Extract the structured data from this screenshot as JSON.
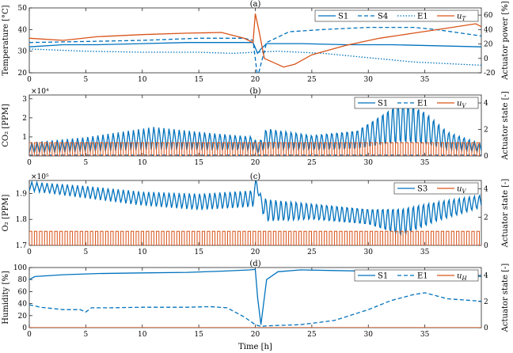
{
  "chart_data": [
    {
      "type": "line",
      "label": "(a)",
      "ylabel": "Temperature [°C]",
      "y2label": "Actuator power [%]",
      "xlim": [
        0,
        40
      ],
      "ylim": [
        20,
        50
      ],
      "y2lim": [
        -20,
        70
      ],
      "xticks": [
        0,
        5,
        10,
        15,
        20,
        25,
        30,
        35
      ],
      "yticks": [
        20,
        30,
        40,
        50
      ],
      "y2ticks": [
        -20,
        0,
        20,
        40,
        60
      ],
      "multiplier": "",
      "legend": [
        "S1",
        "S4",
        "E1",
        "u_T"
      ],
      "series": [
        {
          "name": "S1",
          "style": "solid",
          "axis": "left",
          "color": "#0072BD",
          "x": [
            0,
            3,
            6,
            10,
            14,
            18,
            19.8,
            20.2,
            20.5,
            21,
            24,
            28,
            32,
            36,
            40
          ],
          "y": [
            32,
            33,
            33,
            33.5,
            34,
            34,
            34,
            29,
            31,
            33.5,
            33.5,
            33,
            33,
            32.5,
            32
          ]
        },
        {
          "name": "S4",
          "style": "dashed",
          "axis": "left",
          "color": "#0072BD",
          "x": [
            0,
            5,
            10,
            15,
            19,
            19.8,
            20.2,
            20.5,
            21,
            23,
            26,
            30,
            34,
            36,
            40
          ],
          "y": [
            34,
            34.5,
            35,
            36,
            36,
            35,
            18,
            24,
            34,
            39,
            40,
            41,
            41,
            40,
            37
          ]
        },
        {
          "name": "E1",
          "style": "dotted",
          "axis": "left",
          "color": "#0072BD",
          "x": [
            0,
            5,
            10,
            15,
            18,
            20,
            22,
            26,
            30,
            34,
            38,
            40
          ],
          "y": [
            31,
            30,
            29.5,
            29.5,
            29,
            29.5,
            30,
            29,
            27,
            25,
            24,
            23.5
          ]
        },
        {
          "name": "u_T",
          "style": "solid",
          "axis": "right",
          "color": "#D95319",
          "x": [
            0,
            3,
            6,
            10,
            14,
            17,
            19,
            19.8,
            20,
            20.3,
            20.8,
            21.5,
            22.5,
            23.5,
            25,
            28,
            31,
            34,
            37,
            39.5,
            40
          ],
          "y": [
            28,
            25,
            30,
            33,
            35,
            36,
            28,
            22,
            62,
            40,
            0,
            -5,
            -12,
            -8,
            5,
            18,
            28,
            35,
            42,
            48,
            44
          ]
        }
      ]
    },
    {
      "type": "line",
      "label": "(b)",
      "ylabel": "CO₂ [PPM]",
      "y2label": "Actuator state [-]",
      "xlim": [
        0,
        40
      ],
      "ylim": [
        0,
        3.2
      ],
      "y2lim": [
        0,
        4.6
      ],
      "xticks": [
        0,
        5,
        10,
        15,
        20,
        25,
        30,
        35
      ],
      "yticks": [
        1,
        2,
        3
      ],
      "y2ticks": [
        0,
        2,
        4
      ],
      "multiplier": "×10⁴",
      "legend": [
        "S1",
        "E1",
        "u_V"
      ],
      "series": [
        {
          "name": "S1",
          "style": "solid",
          "axis": "left",
          "color": "#0072BD",
          "env_x": [
            0,
            5,
            11,
            16,
            19.9,
            20.2,
            21,
            25,
            29,
            32,
            33,
            35,
            37,
            40
          ],
          "env_top": [
            0.7,
            1.0,
            1.6,
            1.3,
            1.1,
            0.6,
            1.6,
            1.2,
            1.5,
            2.8,
            3.3,
            2.6,
            1.4,
            0.7
          ],
          "env_bottom": [
            0.15,
            0.2,
            0.25,
            0.2,
            0.2,
            0.1,
            0.2,
            0.2,
            0.2,
            0.3,
            0.3,
            0.3,
            0.2,
            0.15
          ],
          "period": 0.45
        },
        {
          "name": "E1",
          "style": "dashed",
          "axis": "left",
          "color": "#0072BD",
          "x": [
            0,
            40
          ],
          "y": [
            0.04,
            0.04
          ]
        },
        {
          "name": "u_V",
          "style": "square",
          "axis": "right",
          "color": "#D95319",
          "low": 0,
          "high": 1,
          "period": 0.45
        }
      ]
    },
    {
      "type": "line",
      "label": "(c)",
      "ylabel": "O₂ [PPM]",
      "y2label": "Actuator state [-]",
      "xlim": [
        0,
        40
      ],
      "ylim": [
        1.7,
        1.95
      ],
      "y2lim": [
        0,
        4.6
      ],
      "xticks": [
        0,
        5,
        10,
        15,
        20,
        25,
        30,
        35
      ],
      "yticks": [
        1.7,
        1.8,
        1.9
      ],
      "y2ticks": [
        0,
        2,
        4
      ],
      "multiplier": "×10⁵",
      "legend": [
        "S3",
        "u_V"
      ],
      "series": [
        {
          "name": "S3",
          "style": "solid",
          "axis": "left",
          "color": "#0072BD",
          "env_x": [
            0,
            5,
            10,
            15,
            19.8,
            20.1,
            20.5,
            21,
            25,
            30,
            33,
            36,
            40
          ],
          "env_top": [
            1.945,
            1.93,
            1.91,
            1.905,
            1.92,
            1.96,
            1.9,
            1.89,
            1.87,
            1.85,
            1.86,
            1.88,
            1.9
          ],
          "env_bottom": [
            1.91,
            1.88,
            1.85,
            1.83,
            1.84,
            1.93,
            1.83,
            1.78,
            1.79,
            1.77,
            1.72,
            1.78,
            1.84
          ],
          "period": 0.45
        },
        {
          "name": "u_V",
          "style": "square",
          "axis": "right",
          "color": "#D95319",
          "low": 0,
          "high": 1,
          "period": 0.45
        }
      ]
    },
    {
      "type": "line",
      "label": "(d)",
      "ylabel": "Humidity [%]",
      "y2label": "Actuator state [-]",
      "xlim": [
        0,
        40
      ],
      "ylim": [
        0,
        100
      ],
      "y2lim": [
        0,
        4.6
      ],
      "xticks": [
        0,
        5,
        10,
        15,
        20,
        25,
        30,
        35
      ],
      "yticks": [
        0,
        20,
        40,
        60,
        80,
        100
      ],
      "y2ticks": [
        0,
        2,
        4
      ],
      "multiplier": "",
      "xlabel": "Time [h]",
      "legend": [
        "S1",
        "E1",
        "u_H"
      ],
      "series": [
        {
          "name": "S1",
          "style": "solid",
          "axis": "left",
          "color": "#0072BD",
          "x": [
            0,
            0.5,
            3,
            6,
            10,
            14,
            17,
            19.5,
            20,
            20.2,
            20.5,
            21,
            22,
            24,
            27,
            30,
            33,
            36,
            38,
            40
          ],
          "y": [
            80,
            85,
            88,
            90,
            91,
            92,
            94,
            96,
            97,
            50,
            5,
            80,
            93,
            96,
            95,
            94,
            92,
            90,
            87,
            85
          ]
        },
        {
          "name": "E1",
          "style": "dashed",
          "axis": "left",
          "color": "#0072BD",
          "x": [
            0,
            1,
            3,
            4.5,
            5,
            5.5,
            7,
            10,
            14,
            16,
            17.5,
            19,
            20,
            20.5,
            21,
            24,
            27,
            30,
            32,
            34,
            35,
            37,
            40
          ],
          "y": [
            38,
            34,
            30,
            30,
            26,
            33,
            33,
            34,
            34,
            35,
            33,
            18,
            5,
            2,
            3,
            5,
            12,
            30,
            45,
            55,
            58,
            48,
            44
          ]
        },
        {
          "name": "u_H",
          "style": "solid",
          "axis": "right",
          "color": "#D95319",
          "x": [
            0,
            40
          ],
          "y": [
            0,
            0
          ]
        }
      ]
    }
  ]
}
